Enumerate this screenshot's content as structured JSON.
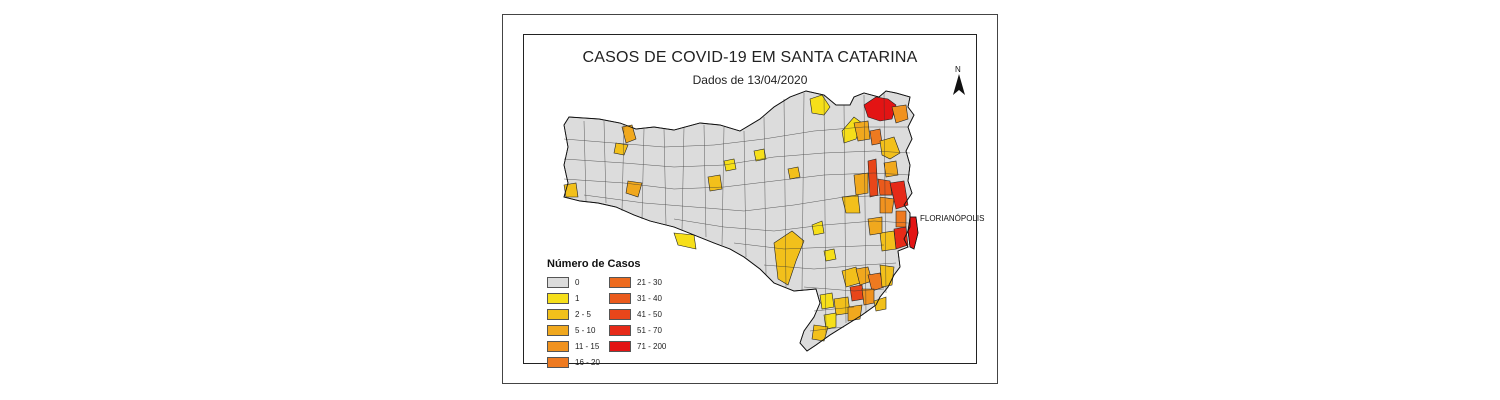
{
  "title": "CASOS DE COVID-19 EM SANTA CATARINA",
  "subtitle": "Dados de 13/04/2020",
  "north_label": "N",
  "city_label": "FLORIANÓPOLIS",
  "legend": {
    "title": "Número de Casos",
    "classes": [
      {
        "label": "0",
        "color": "#dcdcdc"
      },
      {
        "label": "1",
        "color": "#f6df1a"
      },
      {
        "label": "2 - 5",
        "color": "#f2c01b"
      },
      {
        "label": "5 - 10",
        "color": "#f0a81e"
      },
      {
        "label": "11 - 15",
        "color": "#f0921f"
      },
      {
        "label": "16 - 20",
        "color": "#ee7a20"
      },
      {
        "label": "21 - 30",
        "color": "#ec6a1e"
      },
      {
        "label": "31 - 40",
        "color": "#ea5a1c"
      },
      {
        "label": "41 - 50",
        "color": "#e8461a"
      },
      {
        "label": "51 - 70",
        "color": "#e62a18"
      },
      {
        "label": "71 - 200",
        "color": "#e31414"
      }
    ]
  }
}
